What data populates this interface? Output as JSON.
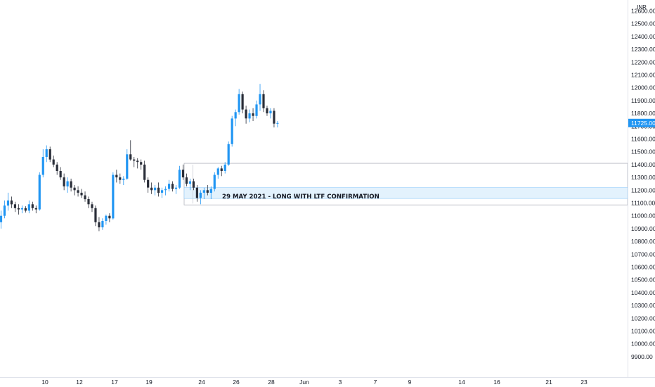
{
  "currency": "INR",
  "chart_data": {
    "type": "candlestick",
    "ylim": [
      9850,
      12650
    ],
    "y_ticks": [
      "12600.00",
      "12500.00",
      "12400.00",
      "12300.00",
      "12200.00",
      "12100.00",
      "12000.00",
      "11900.00",
      "11800.00",
      "11700.00",
      "11600.00",
      "11500.00",
      "11400.00",
      "11300.00",
      "11200.00",
      "11100.00",
      "11000.00",
      "10900.00",
      "10800.00",
      "10700.00",
      "10600.00",
      "10500.00",
      "10400.00",
      "10300.00",
      "10200.00",
      "10100.00",
      "10000.00",
      "9900.00"
    ],
    "x_ticks": [
      "10",
      "12",
      "17",
      "19",
      "24",
      "26",
      "28",
      "Jun",
      "3",
      "7",
      "9",
      "14",
      "16",
      "21",
      "23"
    ],
    "last_price": "11725.00",
    "colors": {
      "up": "#2196f3",
      "down": "#2a2e39",
      "last_price_bg": "#2196f3",
      "zone_fill": "#e3f2fd",
      "zone_border": "#b2b5be"
    },
    "candles": [
      [
        10950,
        11040,
        10900,
        11000
      ],
      [
        11000,
        11120,
        10980,
        11080
      ],
      [
        11080,
        11180,
        11040,
        11120
      ],
      [
        11120,
        11150,
        11060,
        11090
      ],
      [
        11090,
        11110,
        11030,
        11060
      ],
      [
        11060,
        11090,
        11010,
        11050
      ],
      [
        11050,
        11080,
        11020,
        11060
      ],
      [
        11060,
        11075,
        11025,
        11040
      ],
      [
        11040,
        11120,
        11020,
        11090
      ],
      [
        11090,
        11110,
        11040,
        11060
      ],
      [
        11060,
        11080,
        11020,
        11050
      ],
      [
        11050,
        11340,
        11040,
        11320
      ],
      [
        11320,
        11520,
        11300,
        11460
      ],
      [
        11460,
        11550,
        11420,
        11520
      ],
      [
        11520,
        11540,
        11420,
        11440
      ],
      [
        11440,
        11470,
        11380,
        11400
      ],
      [
        11400,
        11420,
        11320,
        11350
      ],
      [
        11350,
        11380,
        11280,
        11300
      ],
      [
        11300,
        11330,
        11200,
        11230
      ],
      [
        11230,
        11300,
        11180,
        11270
      ],
      [
        11270,
        11290,
        11190,
        11220
      ],
      [
        11220,
        11240,
        11160,
        11200
      ],
      [
        11200,
        11230,
        11150,
        11180
      ],
      [
        11180,
        11210,
        11140,
        11160
      ],
      [
        11160,
        11190,
        11110,
        11130
      ],
      [
        11130,
        11150,
        11060,
        11090
      ],
      [
        11090,
        11110,
        11030,
        11060
      ],
      [
        11060,
        11080,
        10920,
        10950
      ],
      [
        10950,
        10990,
        10880,
        10910
      ],
      [
        10910,
        10980,
        10890,
        10960
      ],
      [
        10960,
        11010,
        10930,
        11000
      ],
      [
        11000,
        11020,
        10950,
        10980
      ],
      [
        10980,
        11340,
        10970,
        11320
      ],
      [
        11320,
        11360,
        11260,
        11300
      ],
      [
        11300,
        11330,
        11250,
        11280
      ],
      [
        11280,
        11310,
        11240,
        11290
      ],
      [
        11290,
        11520,
        11280,
        11480
      ],
      [
        11480,
        11590,
        11430,
        11440
      ],
      [
        11440,
        11460,
        11380,
        11430
      ],
      [
        11430,
        11450,
        11370,
        11420
      ],
      [
        11420,
        11440,
        11360,
        11400
      ],
      [
        11400,
        11430,
        11260,
        11280
      ],
      [
        11280,
        11300,
        11180,
        11220
      ],
      [
        11220,
        11260,
        11170,
        11200
      ],
      [
        11200,
        11240,
        11160,
        11220
      ],
      [
        11220,
        11260,
        11150,
        11180
      ],
      [
        11180,
        11220,
        11140,
        11200
      ],
      [
        11200,
        11230,
        11160,
        11210
      ],
      [
        11210,
        11280,
        11190,
        11250
      ],
      [
        11250,
        11270,
        11190,
        11210
      ],
      [
        11210,
        11240,
        11170,
        11220
      ],
      [
        11220,
        11390,
        11210,
        11360
      ],
      [
        11360,
        11400,
        11280,
        11300
      ],
      [
        11300,
        11330,
        11230,
        11250
      ],
      [
        11250,
        11290,
        11200,
        11270
      ],
      [
        11270,
        11290,
        11200,
        11220
      ],
      [
        11220,
        11240,
        11110,
        11140
      ],
      [
        11140,
        11200,
        11090,
        11180
      ],
      [
        11180,
        11220,
        11130,
        11200
      ],
      [
        11200,
        11240,
        11160,
        11180
      ],
      [
        11180,
        11230,
        11130,
        11210
      ],
      [
        11210,
        11340,
        11190,
        11320
      ],
      [
        11320,
        11380,
        11290,
        11370
      ],
      [
        11370,
        11390,
        11310,
        11350
      ],
      [
        11350,
        11420,
        11330,
        11400
      ],
      [
        11400,
        11580,
        11390,
        11560
      ],
      [
        11560,
        11780,
        11540,
        11760
      ],
      [
        11760,
        11830,
        11700,
        11810
      ],
      [
        11810,
        11990,
        11790,
        11950
      ],
      [
        11950,
        11970,
        11800,
        11830
      ],
      [
        11830,
        11860,
        11720,
        11760
      ],
      [
        11760,
        11830,
        11730,
        11800
      ],
      [
        11800,
        11840,
        11740,
        11780
      ],
      [
        11780,
        11900,
        11760,
        11870
      ],
      [
        11870,
        12030,
        11820,
        11950
      ],
      [
        11950,
        11980,
        11810,
        11840
      ],
      [
        11840,
        11860,
        11780,
        11800
      ],
      [
        11800,
        11840,
        11760,
        11820
      ],
      [
        11820,
        11840,
        11690,
        11720
      ],
      [
        11720,
        11740,
        11690,
        11725
      ]
    ]
  },
  "annotation": {
    "text": "29 MAY 2021 - LONG WITH LTF CONFIRMATION"
  },
  "zones": {
    "outer_box": {
      "top": 11410,
      "bottom": 11085
    },
    "entry_zone": {
      "top": 11220,
      "bottom": 11135
    }
  }
}
